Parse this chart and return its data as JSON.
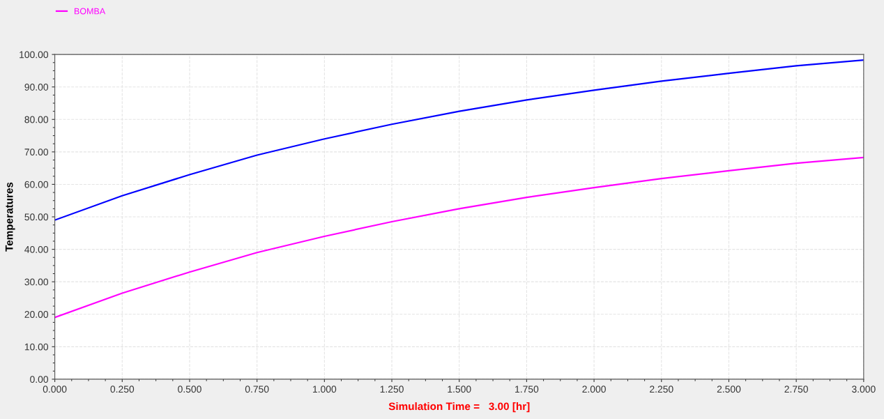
{
  "chart_data": {
    "type": "line",
    "xlabel": "Simulation Time =   3.00 [hr]",
    "ylabel": "Temperatures",
    "x": [
      0,
      0.25,
      0.5,
      0.75,
      1.0,
      1.25,
      1.5,
      1.75,
      2.0,
      2.25,
      2.5,
      2.75,
      3.0
    ],
    "series": [
      {
        "color": "#0000ff",
        "values": [
          49,
          56.5,
          63,
          69,
          74,
          78.5,
          82.5,
          86,
          89,
          91.8,
          94.2,
          96.5,
          98.3
        ]
      },
      {
        "name": "BOMBA",
        "color": "#ff00ff",
        "values": [
          19,
          26.5,
          33,
          39,
          44,
          48.5,
          52.5,
          56,
          59,
          61.8,
          64.2,
          66.5,
          68.3
        ]
      }
    ],
    "xlim": [
      0,
      3
    ],
    "ylim": [
      0,
      100
    ],
    "xticks": [
      {
        "value": 0,
        "label": "0.000"
      },
      {
        "value": 0.25,
        "label": "0.250"
      },
      {
        "value": 0.5,
        "label": "0.500"
      },
      {
        "value": 0.75,
        "label": "0.750"
      },
      {
        "value": 1,
        "label": "1.000"
      },
      {
        "value": 1.25,
        "label": "1.250"
      },
      {
        "value": 1.5,
        "label": "1.500"
      },
      {
        "value": 1.75,
        "label": "1.750"
      },
      {
        "value": 2,
        "label": "2.000"
      },
      {
        "value": 2.25,
        "label": "2.250"
      },
      {
        "value": 2.5,
        "label": "2.500"
      },
      {
        "value": 2.75,
        "label": "2.750"
      },
      {
        "value": 3,
        "label": "3.000"
      }
    ],
    "yticks": [
      {
        "value": 0,
        "label": "0.00"
      },
      {
        "value": 10,
        "label": "10.00"
      },
      {
        "value": 20,
        "label": "20.00"
      },
      {
        "value": 30,
        "label": "30.00"
      },
      {
        "value": 40,
        "label": "40.00"
      },
      {
        "value": 50,
        "label": "50.00"
      },
      {
        "value": 60,
        "label": "60.00"
      },
      {
        "value": 70,
        "label": "70.00"
      },
      {
        "value": 80,
        "label": "80.00"
      },
      {
        "value": 90,
        "label": "90.00"
      },
      {
        "value": 100,
        "label": "100.00"
      }
    ],
    "grid": true,
    "legend": "top left",
    "marker": "none",
    "line_style": "solid"
  }
}
